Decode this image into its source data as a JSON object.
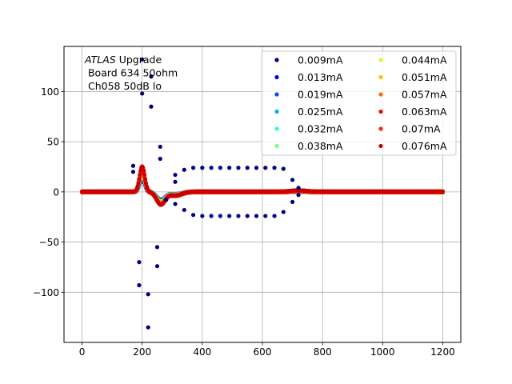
{
  "chart_data": {
    "type": "scatter",
    "title": "",
    "xlabel": "",
    "ylabel": "",
    "xlim": [
      -60,
      1260
    ],
    "ylim": [
      -150,
      145
    ],
    "x_ticks": [
      0,
      200,
      400,
      600,
      800,
      1000,
      1200
    ],
    "y_ticks": [
      -100,
      -50,
      0,
      50,
      100
    ],
    "grid": true,
    "legend": {
      "placement": "top-right",
      "columns": 2
    },
    "annotation": {
      "italic": "ATLAS",
      "line1_rest": " Upgrade",
      "line2": " Board 634 50ohm",
      "line3": " Ch058 50dB lo"
    },
    "series": [
      {
        "name": "0.009mA",
        "color": "#00007f",
        "amp": 1.0
      },
      {
        "name": "0.013mA",
        "color": "#0000f1",
        "amp": 1.0
      },
      {
        "name": "0.019mA",
        "color": "#004cff",
        "amp": 1.0
      },
      {
        "name": "0.025mA",
        "color": "#00b0ff",
        "amp": 1.0
      },
      {
        "name": "0.032mA",
        "color": "#29ffce",
        "amp": 1.0
      },
      {
        "name": "0.038mA",
        "color": "#7dff7a",
        "amp": 1.0
      },
      {
        "name": "0.044mA",
        "color": "#ceff29",
        "amp": 1.0
      },
      {
        "name": "0.051mA",
        "color": "#ffc400",
        "amp": 1.0
      },
      {
        "name": "0.057mA",
        "color": "#ff6800",
        "amp": 1.0
      },
      {
        "name": "0.063mA",
        "color": "#f10800",
        "amp": 1.0
      },
      {
        "name": "0.07mA",
        "color": "#ff2500",
        "amp": 1.0
      },
      {
        "name": "0.076mA",
        "color": "#cc0000",
        "amp": 1.0
      }
    ],
    "outlier_points": [
      [
        200,
        132
      ],
      [
        200,
        98
      ],
      [
        230,
        115
      ],
      [
        230,
        85
      ],
      [
        260,
        45
      ],
      [
        260,
        33
      ],
      [
        170,
        26
      ],
      [
        170,
        20
      ],
      [
        250,
        -55
      ],
      [
        250,
        -74
      ],
      [
        190,
        -70
      ],
      [
        190,
        -93
      ],
      [
        220,
        -102
      ],
      [
        220,
        -135
      ],
      [
        310,
        17
      ],
      [
        310,
        10
      ],
      [
        340,
        22
      ],
      [
        340,
        -18
      ],
      [
        370,
        24
      ],
      [
        370,
        -23
      ],
      [
        400,
        24
      ],
      [
        400,
        -24
      ],
      [
        430,
        24
      ],
      [
        430,
        -24
      ],
      [
        460,
        24
      ],
      [
        460,
        -24
      ],
      [
        490,
        24
      ],
      [
        490,
        -24
      ],
      [
        520,
        24
      ],
      [
        520,
        -24
      ],
      [
        550,
        24
      ],
      [
        550,
        -24
      ],
      [
        580,
        24
      ],
      [
        580,
        -24
      ],
      [
        610,
        24
      ],
      [
        610,
        -24
      ],
      [
        640,
        24
      ],
      [
        640,
        -24
      ],
      [
        670,
        23
      ],
      [
        670,
        -20
      ],
      [
        700,
        12
      ],
      [
        700,
        -10
      ],
      [
        720,
        4
      ],
      [
        720,
        -3
      ],
      [
        310,
        -12
      ],
      [
        280,
        -8
      ]
    ]
  }
}
